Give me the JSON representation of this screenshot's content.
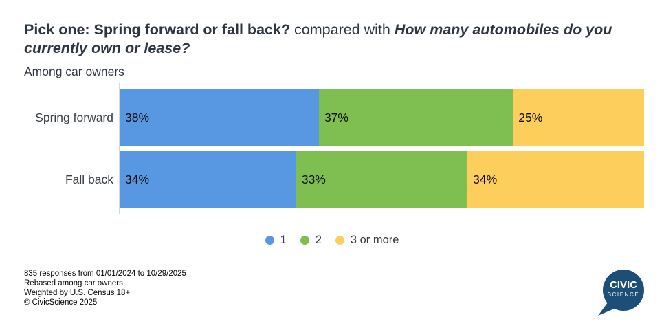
{
  "title": {
    "part_bold": "Pick one: Spring forward or fall back?",
    "part_mid": " compared with ",
    "part_bold_italic": "How many automobiles do you currently own or lease?"
  },
  "subtitle": "Among car owners",
  "chart_data": {
    "type": "bar",
    "orientation": "horizontal",
    "stacked": true,
    "categories": [
      "Spring forward",
      "Fall back"
    ],
    "series": [
      {
        "name": "1",
        "color": "#5897E1",
        "values": [
          38,
          34
        ]
      },
      {
        "name": "2",
        "color": "#7FBE50",
        "values": [
          37,
          33
        ]
      },
      {
        "name": "3 or more",
        "color": "#FDCE5B",
        "values": [
          25,
          34
        ]
      }
    ],
    "value_suffix": "%",
    "xlim": [
      0,
      100
    ],
    "grid": false,
    "legend_position": "bottom",
    "title": "Pick one: Spring forward or fall back? compared with How many automobiles do you currently own or lease?",
    "subtitle": "Among car owners"
  },
  "footer": {
    "lines": [
      "835 responses from 01/01/2024 to 10/29/2025",
      "Rebased among car owners",
      "Weighted by U.S. Census 18+",
      "© CivicScience 2025"
    ]
  },
  "logo": {
    "line1": "CIVIC",
    "line2": "SCIENCE",
    "color": "#1C4E78"
  },
  "style": {
    "axis_color": "#d8d8d8",
    "title_color": "#2d3542"
  }
}
